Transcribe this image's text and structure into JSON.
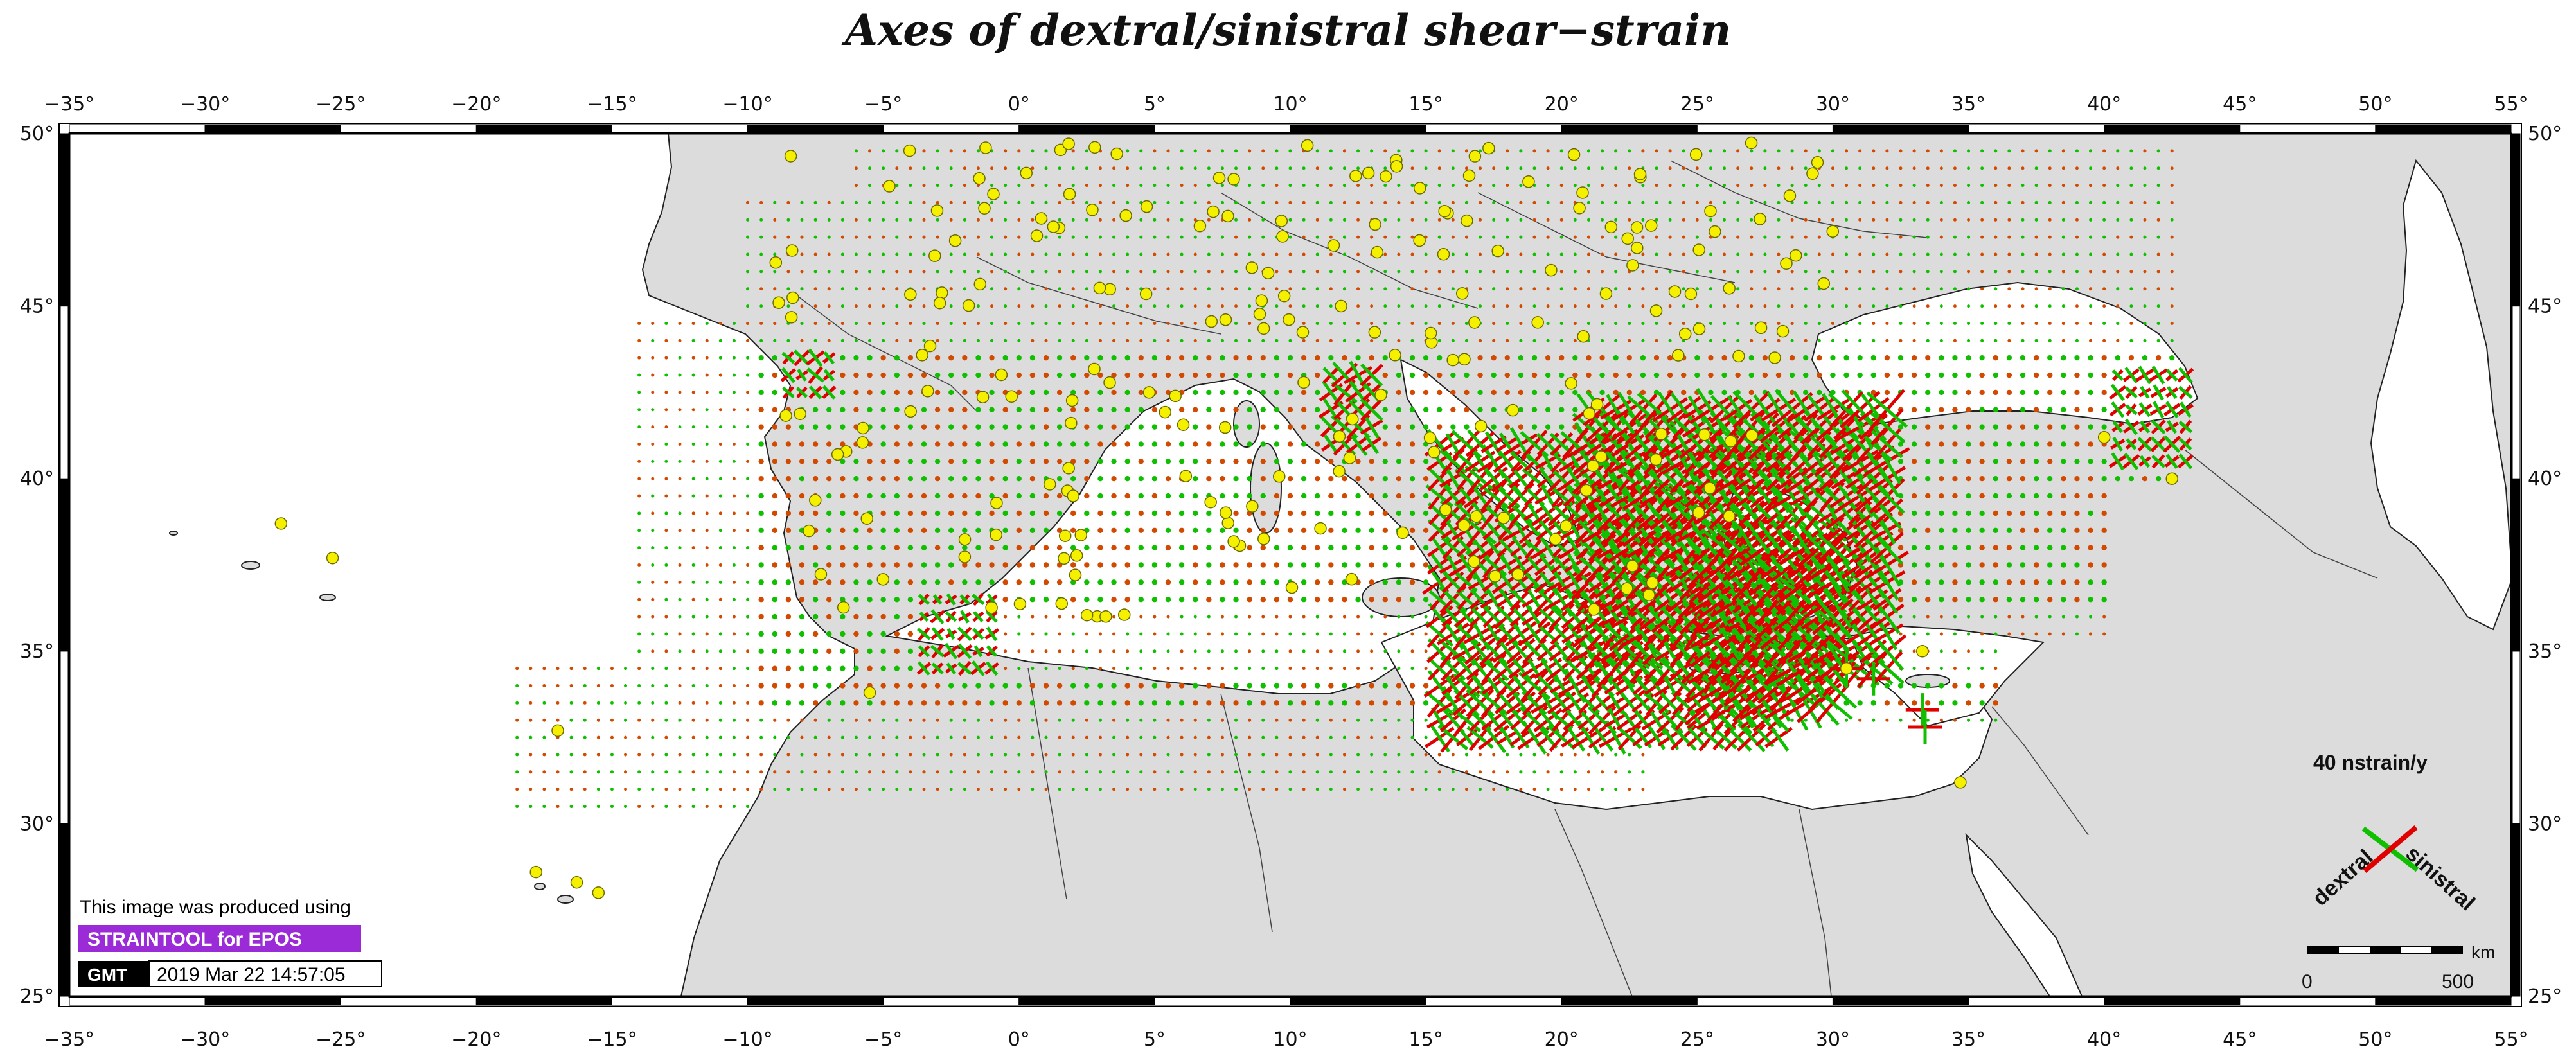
{
  "title": "Axes of dextral/sinistral shear−strain",
  "axes": {
    "lon_ticks": [
      "−35°",
      "−30°",
      "−25°",
      "−20°",
      "−15°",
      "−10°",
      "−5°",
      "0°",
      "5°",
      "10°",
      "15°",
      "20°",
      "25°",
      "30°",
      "35°",
      "40°",
      "45°",
      "50°",
      "55°"
    ],
    "lat_ticks": [
      "50°",
      "45°",
      "40°",
      "35°",
      "30°",
      "25°"
    ],
    "lon_range": [
      -35,
      55
    ],
    "lat_range": [
      25,
      50
    ]
  },
  "legend": {
    "rate_label": "40 nstrain/y",
    "dextral_label": "dextral",
    "sinistral_label": "sinistral",
    "dextral_color": "#e00000",
    "sinistral_color": "#10c000"
  },
  "scale_bar": {
    "unit": "km",
    "start": "0",
    "end": "500"
  },
  "credits": {
    "line1": "This image was produced using",
    "tool": "STRAINTOOL for EPOS",
    "tool_bg": "#9b2bd6",
    "gmt_logo": "GMT",
    "timestamp": "2019 Mar 22 14:57:05"
  },
  "colors": {
    "land": "#dcdcdc",
    "sea": "#ffffff",
    "station": "#f5f000",
    "dextral": "#e00000",
    "sinistral": "#10c000"
  }
}
